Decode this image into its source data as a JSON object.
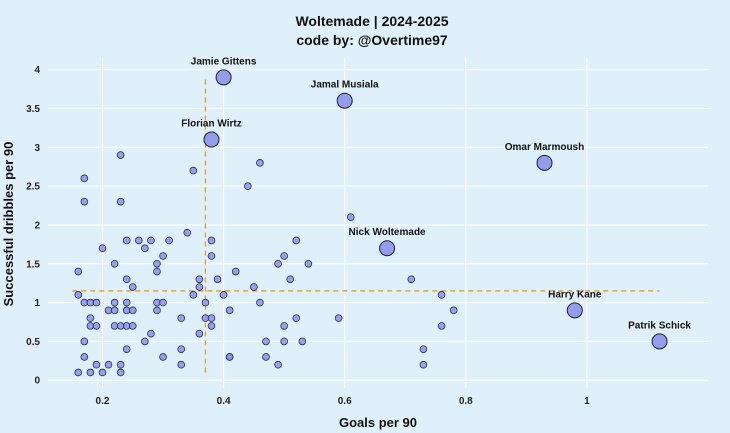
{
  "chart_data": {
    "type": "scatter",
    "title": "Woltemade | 2024-2025",
    "subtitle": "code by: @Overtime97",
    "xlabel": "Goals per 90",
    "ylabel": "Successful dribbles per 90",
    "xlim": [
      0.11,
      1.2
    ],
    "ylim": [
      -0.1,
      4.15
    ],
    "x_ticks": [
      0.2,
      0.4,
      0.6,
      0.8,
      1.0
    ],
    "x_tick_labels": [
      "0.2",
      "0.4",
      "0.6",
      "0.8",
      "1"
    ],
    "y_ticks": [
      0,
      0.5,
      1,
      1.5,
      2,
      2.5,
      3,
      3.5,
      4
    ],
    "y_tick_labels": [
      "0",
      "0.5",
      "1",
      "1.5",
      "2",
      "2.5",
      "3",
      "3.5",
      "4"
    ],
    "grid": true,
    "reference_lines": {
      "x_mean": 0.37,
      "x_mean_span": [
        0.1,
        3.9
      ],
      "y_mean": 1.15,
      "y_mean_span": [
        0.15,
        1.12
      ]
    },
    "labeled_players": [
      {
        "name": "Jamie Gittens",
        "x": 0.4,
        "y": 3.9
      },
      {
        "name": "Jamal Musiala",
        "x": 0.6,
        "y": 3.6
      },
      {
        "name": "Florian Wirtz",
        "x": 0.38,
        "y": 3.1
      },
      {
        "name": "Omar Marmoush",
        "x": 0.93,
        "y": 2.8
      },
      {
        "name": "Nick Woltemade",
        "x": 0.67,
        "y": 1.7
      },
      {
        "name": "Harry Kane",
        "x": 0.98,
        "y": 0.9
      },
      {
        "name": "Patrik Schick",
        "x": 1.12,
        "y": 0.5
      }
    ],
    "points": [
      {
        "x": 0.16,
        "y": 1.4
      },
      {
        "x": 0.16,
        "y": 1.1
      },
      {
        "x": 0.16,
        "y": 0.1
      },
      {
        "x": 0.17,
        "y": 2.6
      },
      {
        "x": 0.17,
        "y": 2.3
      },
      {
        "x": 0.17,
        "y": 1.0
      },
      {
        "x": 0.17,
        "y": 0.5
      },
      {
        "x": 0.17,
        "y": 0.3
      },
      {
        "x": 0.18,
        "y": 1.0
      },
      {
        "x": 0.18,
        "y": 0.8
      },
      {
        "x": 0.18,
        "y": 0.7
      },
      {
        "x": 0.18,
        "y": 0.1
      },
      {
        "x": 0.19,
        "y": 1.0
      },
      {
        "x": 0.19,
        "y": 0.7
      },
      {
        "x": 0.19,
        "y": 0.2
      },
      {
        "x": 0.2,
        "y": 1.7
      },
      {
        "x": 0.2,
        "y": 0.1
      },
      {
        "x": 0.21,
        "y": 0.9
      },
      {
        "x": 0.21,
        "y": 0.2
      },
      {
        "x": 0.22,
        "y": 1.5
      },
      {
        "x": 0.22,
        "y": 1.0
      },
      {
        "x": 0.22,
        "y": 0.9
      },
      {
        "x": 0.22,
        "y": 0.7
      },
      {
        "x": 0.23,
        "y": 2.9
      },
      {
        "x": 0.23,
        "y": 2.3
      },
      {
        "x": 0.23,
        "y": 0.7
      },
      {
        "x": 0.23,
        "y": 0.2
      },
      {
        "x": 0.23,
        "y": 0.1
      },
      {
        "x": 0.24,
        "y": 1.8
      },
      {
        "x": 0.24,
        "y": 1.3
      },
      {
        "x": 0.24,
        "y": 1.0
      },
      {
        "x": 0.24,
        "y": 0.9
      },
      {
        "x": 0.24,
        "y": 0.7
      },
      {
        "x": 0.24,
        "y": 0.4
      },
      {
        "x": 0.25,
        "y": 1.2
      },
      {
        "x": 0.25,
        "y": 0.9
      },
      {
        "x": 0.25,
        "y": 0.7
      },
      {
        "x": 0.26,
        "y": 1.8
      },
      {
        "x": 0.27,
        "y": 1.7
      },
      {
        "x": 0.27,
        "y": 0.5
      },
      {
        "x": 0.28,
        "y": 1.8
      },
      {
        "x": 0.28,
        "y": 0.6
      },
      {
        "x": 0.29,
        "y": 1.5
      },
      {
        "x": 0.29,
        "y": 1.4
      },
      {
        "x": 0.29,
        "y": 1.0
      },
      {
        "x": 0.29,
        "y": 0.9
      },
      {
        "x": 0.3,
        "y": 1.6
      },
      {
        "x": 0.3,
        "y": 1.0
      },
      {
        "x": 0.3,
        "y": 0.3
      },
      {
        "x": 0.31,
        "y": 1.8
      },
      {
        "x": 0.33,
        "y": 0.8
      },
      {
        "x": 0.33,
        "y": 0.4
      },
      {
        "x": 0.33,
        "y": 0.2
      },
      {
        "x": 0.34,
        "y": 1.9
      },
      {
        "x": 0.35,
        "y": 2.7
      },
      {
        "x": 0.35,
        "y": 1.1
      },
      {
        "x": 0.36,
        "y": 1.3
      },
      {
        "x": 0.36,
        "y": 1.2
      },
      {
        "x": 0.36,
        "y": 0.6
      },
      {
        "x": 0.37,
        "y": 1.0
      },
      {
        "x": 0.37,
        "y": 0.8
      },
      {
        "x": 0.38,
        "y": 1.8
      },
      {
        "x": 0.38,
        "y": 1.6
      },
      {
        "x": 0.38,
        "y": 0.8
      },
      {
        "x": 0.38,
        "y": 0.7
      },
      {
        "x": 0.39,
        "y": 1.3
      },
      {
        "x": 0.4,
        "y": 1.1
      },
      {
        "x": 0.41,
        "y": 0.9
      },
      {
        "x": 0.41,
        "y": 0.3
      },
      {
        "x": 0.41,
        "y": 0.3
      },
      {
        "x": 0.42,
        "y": 1.4
      },
      {
        "x": 0.44,
        "y": 2.5
      },
      {
        "x": 0.45,
        "y": 1.2
      },
      {
        "x": 0.46,
        "y": 2.8
      },
      {
        "x": 0.46,
        "y": 1.0
      },
      {
        "x": 0.47,
        "y": 0.5
      },
      {
        "x": 0.47,
        "y": 0.3
      },
      {
        "x": 0.49,
        "y": 1.5
      },
      {
        "x": 0.49,
        "y": 0.2
      },
      {
        "x": 0.5,
        "y": 1.6
      },
      {
        "x": 0.5,
        "y": 0.7
      },
      {
        "x": 0.5,
        "y": 0.5
      },
      {
        "x": 0.51,
        "y": 1.3
      },
      {
        "x": 0.52,
        "y": 1.8
      },
      {
        "x": 0.52,
        "y": 0.8
      },
      {
        "x": 0.53,
        "y": 0.5
      },
      {
        "x": 0.54,
        "y": 1.5
      },
      {
        "x": 0.59,
        "y": 0.8
      },
      {
        "x": 0.61,
        "y": 2.1
      },
      {
        "x": 0.71,
        "y": 1.3
      },
      {
        "x": 0.73,
        "y": 0.4
      },
      {
        "x": 0.73,
        "y": 0.2
      },
      {
        "x": 0.76,
        "y": 1.1
      },
      {
        "x": 0.76,
        "y": 0.7
      },
      {
        "x": 0.78,
        "y": 0.9
      }
    ]
  }
}
